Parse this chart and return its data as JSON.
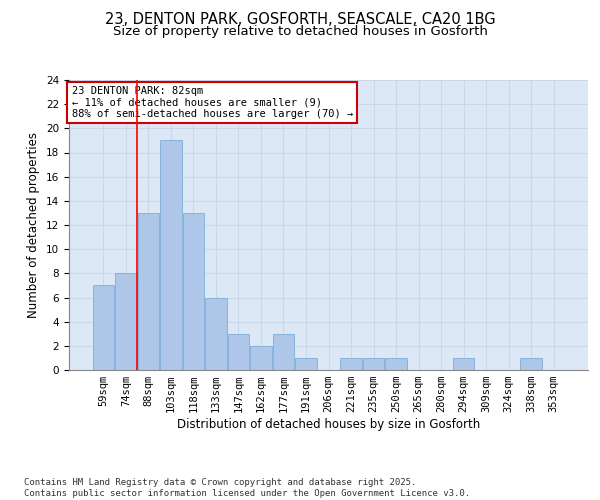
{
  "title_line1": "23, DENTON PARK, GOSFORTH, SEASCALE, CA20 1BG",
  "title_line2": "Size of property relative to detached houses in Gosforth",
  "xlabel": "Distribution of detached houses by size in Gosforth",
  "ylabel": "Number of detached properties",
  "categories": [
    "59sqm",
    "74sqm",
    "88sqm",
    "103sqm",
    "118sqm",
    "133sqm",
    "147sqm",
    "162sqm",
    "177sqm",
    "191sqm",
    "206sqm",
    "221sqm",
    "235sqm",
    "250sqm",
    "265sqm",
    "280sqm",
    "294sqm",
    "309sqm",
    "324sqm",
    "338sqm",
    "353sqm"
  ],
  "values": [
    7,
    8,
    13,
    19,
    13,
    6,
    3,
    2,
    3,
    1,
    0,
    1,
    1,
    1,
    0,
    0,
    1,
    0,
    0,
    1,
    0
  ],
  "bar_color": "#aec6e8",
  "bar_edge_color": "#6fa8d6",
  "grid_color": "#c8d8e8",
  "bg_color": "#dce8f5",
  "annotation_box_text": "23 DENTON PARK: 82sqm\n← 11% of detached houses are smaller (9)\n88% of semi-detached houses are larger (70) →",
  "annotation_box_color": "#cc0000",
  "ylim": [
    0,
    24
  ],
  "yticks": [
    0,
    2,
    4,
    6,
    8,
    10,
    12,
    14,
    16,
    18,
    20,
    22,
    24
  ],
  "footer_text": "Contains HM Land Registry data © Crown copyright and database right 2025.\nContains public sector information licensed under the Open Government Licence v3.0.",
  "title_fontsize": 10.5,
  "subtitle_fontsize": 9.5,
  "axis_label_fontsize": 8.5,
  "tick_fontsize": 7.5,
  "footer_fontsize": 6.5
}
